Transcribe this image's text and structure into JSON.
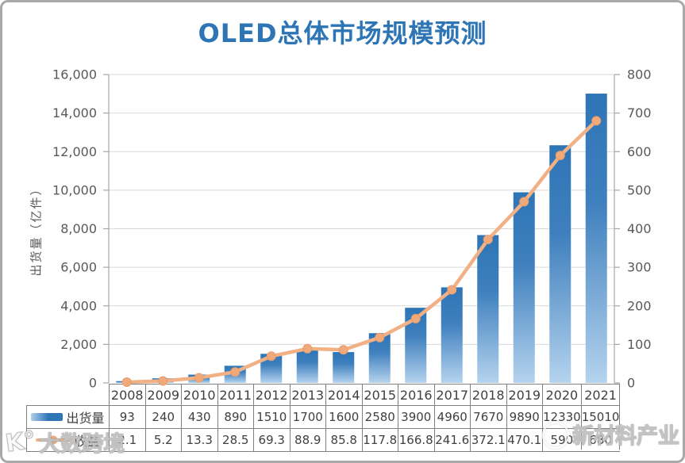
{
  "chart_data": {
    "type": "combo",
    "title": "OLED总体市场规模预测",
    "categories": [
      "2008",
      "2009",
      "2010",
      "2011",
      "2012",
      "2013",
      "2014",
      "2015",
      "2016",
      "2017",
      "2018",
      "2019",
      "2020",
      "2021"
    ],
    "series": [
      {
        "name": "出货量",
        "chart": "bar",
        "axis": "left",
        "color_top": "#2E75B6",
        "color_mid": "#3F80BE",
        "color_bottom": "#B5D3EE",
        "values": [
          93,
          240,
          430,
          890,
          1510,
          1700,
          1600,
          2580,
          3900,
          4960,
          7670,
          9890,
          12330,
          15010
        ]
      },
      {
        "name": "收益",
        "chart": "line",
        "axis": "right",
        "color": "#F2B185",
        "marker_color": "#EFA97B",
        "marker_edge": "#EA9C68",
        "values": [
          2.1,
          5.2,
          13.3,
          28.5,
          69.3,
          88.9,
          85.8,
          117.8,
          166.8,
          241.6,
          372.1,
          470.1,
          590,
          680
        ]
      }
    ],
    "ylabel_left": "出货量（亿件）",
    "ylim_left": [
      0,
      16000
    ],
    "ytick_left": 2000,
    "ylim_right": [
      0,
      800
    ],
    "ytick_right": 100,
    "grid": true,
    "grid_color": "#D9D9D9",
    "axis_color": "#A6A6A6",
    "axis_text_color": "#595959",
    "legend_position": "table-left"
  },
  "table": {
    "years": [
      "2008",
      "2009",
      "2010",
      "2011",
      "2012",
      "2013",
      "2014",
      "2015",
      "2016",
      "2017",
      "2018",
      "2019",
      "2020",
      "2021"
    ],
    "rows": [
      {
        "label": "出货量",
        "swatch": "bar",
        "values": [
          "93",
          "240",
          "430",
          "890",
          "1510",
          "1700",
          "1600",
          "2580",
          "3900",
          "4960",
          "7670",
          "9890",
          "12330",
          "15010"
        ]
      },
      {
        "label": "收益",
        "swatch": "line",
        "values": [
          "2.1",
          "5.2",
          "13.3",
          "28.5",
          "69.3",
          "88.9",
          "85.8",
          "117.8",
          "166.8",
          "241.6",
          "372.1",
          "470.1",
          "590",
          "680"
        ]
      }
    ]
  },
  "watermarks": {
    "bottom_left": {
      "logo_glyph": "K°",
      "text": "大数跨境"
    },
    "bottom_right": {
      "text": "新材料产业"
    }
  }
}
